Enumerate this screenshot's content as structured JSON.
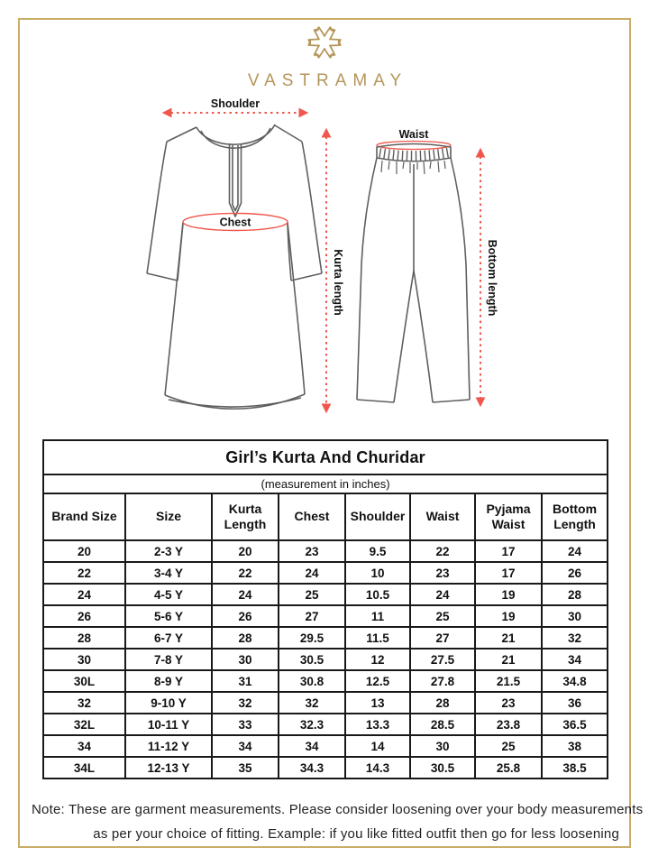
{
  "brand": {
    "name": "VASTRAMAY"
  },
  "colors": {
    "gold": "#b5965a",
    "frame_gold": "#c9ad68",
    "arrow_red": "#ef564c",
    "line_gray": "#5f5f5f"
  },
  "diagram": {
    "kurta": {
      "shoulder_label": "Shoulder",
      "chest_label": "Chest",
      "length_label": "Kurta length"
    },
    "churidar": {
      "waist_label": "Waist",
      "length_label": "Bottom length"
    }
  },
  "table": {
    "title": "Girl’s Kurta And Churidar",
    "subtitle": "(measurement in inches)",
    "columns": [
      "Brand Size",
      "Size",
      "Kurta Length",
      "Chest",
      "Shoulder",
      "Waist",
      "Pyjama Waist",
      "Bottom Length"
    ],
    "rows": [
      [
        "20",
        "2-3 Y",
        "20",
        "23",
        "9.5",
        "22",
        "17",
        "24"
      ],
      [
        "22",
        "3-4 Y",
        "22",
        "24",
        "10",
        "23",
        "17",
        "26"
      ],
      [
        "24",
        "4-5 Y",
        "24",
        "25",
        "10.5",
        "24",
        "19",
        "28"
      ],
      [
        "26",
        "5-6 Y",
        "26",
        "27",
        "11",
        "25",
        "19",
        "30"
      ],
      [
        "28",
        "6-7 Y",
        "28",
        "29.5",
        "11.5",
        "27",
        "21",
        "32"
      ],
      [
        "30",
        "7-8 Y",
        "30",
        "30.5",
        "12",
        "27.5",
        "21",
        "34"
      ],
      [
        "30L",
        "8-9 Y",
        "31",
        "30.8",
        "12.5",
        "27.8",
        "21.5",
        "34.8"
      ],
      [
        "32",
        "9-10 Y",
        "32",
        "32",
        "13",
        "28",
        "23",
        "36"
      ],
      [
        "32L",
        "10-11 Y",
        "33",
        "32.3",
        "13.3",
        "28.5",
        "23.8",
        "36.5"
      ],
      [
        "34",
        "11-12 Y",
        "34",
        "34",
        "14",
        "30",
        "25",
        "38"
      ],
      [
        "34L",
        "12-13 Y",
        "35",
        "34.3",
        "14.3",
        "30.5",
        "25.8",
        "38.5"
      ]
    ]
  },
  "note": {
    "line1": "Note: These are garment measurements. Please consider loosening over your body measurements",
    "line2": "as per your choice of fitting. Example: if you like fitted outfit then go for less loosening"
  }
}
